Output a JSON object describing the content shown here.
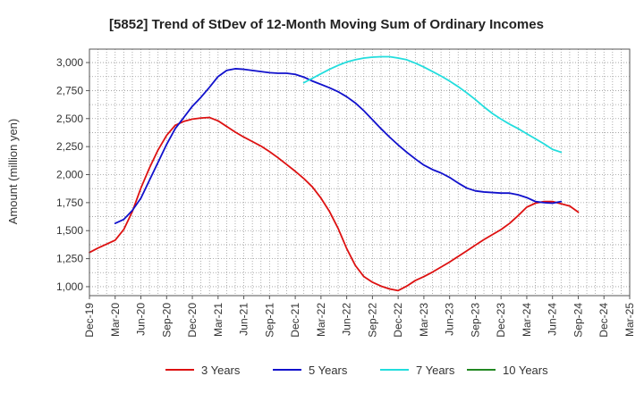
{
  "chart_data": {
    "type": "line",
    "title": "[5852]  Trend of StDev of 12-Month Moving Sum of Ordinary Incomes",
    "xlabel": "",
    "ylabel": "Amount (million yen)",
    "ylim": [
      920,
      3120
    ],
    "yticks": [
      1000,
      1250,
      1500,
      1750,
      2000,
      2250,
      2500,
      2750,
      3000
    ],
    "ytick_labels": [
      "1,000",
      "1,250",
      "1,500",
      "1,750",
      "2,000",
      "2,250",
      "2,500",
      "2,750",
      "3,000"
    ],
    "xticks": [
      "Dec-19",
      "Mar-20",
      "Jun-20",
      "Sep-20",
      "Dec-20",
      "Mar-21",
      "Jun-21",
      "Sep-21",
      "Dec-21",
      "Mar-22",
      "Jun-22",
      "Sep-22",
      "Dec-22",
      "Mar-23",
      "Jun-23",
      "Sep-23",
      "Dec-23",
      "Mar-24",
      "Jun-24",
      "Sep-24",
      "Dec-24",
      "Mar-25"
    ],
    "x_start": "Dec-19",
    "grid": true,
    "legend_position": "bottom",
    "series": [
      {
        "name": "3 Years",
        "color": "#dd1111",
        "values": [
          1305,
          1345,
          1380,
          1415,
          1510,
          1670,
          1880,
          2060,
          2220,
          2350,
          2440,
          2475,
          2495,
          2505,
          2510,
          2480,
          2430,
          2380,
          2335,
          2295,
          2255,
          2205,
          2150,
          2090,
          2030,
          1965,
          1890,
          1790,
          1670,
          1520,
          1340,
          1190,
          1090,
          1040,
          1005,
          980,
          965,
          1005,
          1055,
          1090,
          1130,
          1175,
          1220,
          1270,
          1320,
          1370,
          1420,
          1465,
          1510,
          1565,
          1635,
          1710,
          1745,
          1760,
          1760,
          1740,
          1720,
          1665
        ]
      },
      {
        "name": "5 Years",
        "color": "#1111cc",
        "values": [
          null,
          null,
          null,
          1565,
          1600,
          1680,
          1790,
          1950,
          2110,
          2270,
          2410,
          2510,
          2610,
          2690,
          2780,
          2875,
          2930,
          2945,
          2940,
          2930,
          2920,
          2910,
          2905,
          2905,
          2895,
          2870,
          2835,
          2805,
          2775,
          2740,
          2695,
          2640,
          2570,
          2490,
          2410,
          2335,
          2265,
          2200,
          2140,
          2085,
          2045,
          2015,
          1975,
          1925,
          1880,
          1855,
          1845,
          1840,
          1835,
          1835,
          1820,
          1795,
          1760,
          1750,
          1745,
          1760
        ]
      },
      {
        "name": "7 Years",
        "color": "#22dddd",
        "values": [
          null,
          null,
          null,
          null,
          null,
          null,
          null,
          null,
          null,
          null,
          null,
          null,
          null,
          null,
          null,
          null,
          null,
          null,
          null,
          null,
          null,
          null,
          null,
          null,
          null,
          2820,
          2860,
          2900,
          2940,
          2975,
          3005,
          3025,
          3040,
          3048,
          3052,
          3052,
          3040,
          3025,
          2995,
          2960,
          2920,
          2880,
          2835,
          2785,
          2730,
          2670,
          2605,
          2545,
          2495,
          2450,
          2410,
          2365,
          2320,
          2275,
          2225,
          2200
        ]
      },
      {
        "name": "10 Years",
        "color": "#228822",
        "values": []
      }
    ]
  }
}
